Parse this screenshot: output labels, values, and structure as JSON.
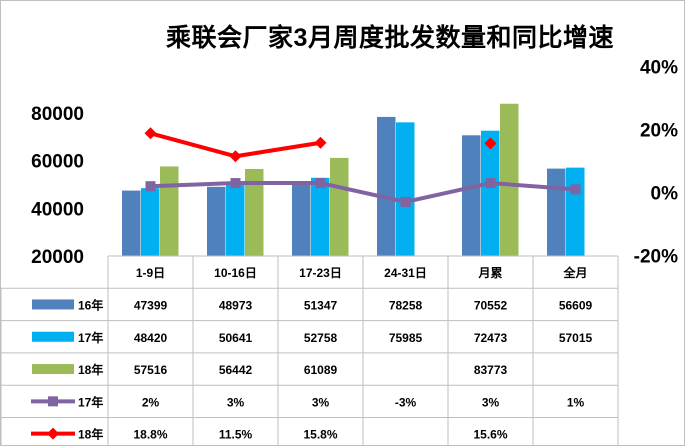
{
  "chart_data": {
    "type": "bar",
    "title": "乘联会厂家3月周度批发数量和同比增速",
    "categories": [
      "1-9日",
      "10-16日",
      "17-23日",
      "24-31日",
      "月累",
      "全月"
    ],
    "series": [
      {
        "name": "16年",
        "kind": "bar",
        "axis": "left",
        "color": "#4F81BD",
        "values": [
          47399,
          48973,
          51347,
          78258,
          70552,
          56609
        ]
      },
      {
        "name": "17年",
        "kind": "bar",
        "axis": "left",
        "color": "#00B0F0",
        "values": [
          48420,
          50641,
          52758,
          75985,
          72473,
          57015
        ]
      },
      {
        "name": "18年",
        "kind": "bar",
        "axis": "left",
        "color": "#9BBB59",
        "values": [
          57516,
          56442,
          61089,
          null,
          83773,
          null
        ]
      },
      {
        "name": "17年",
        "kind": "line",
        "axis": "right",
        "color": "#8064A2",
        "marker": "square",
        "values": [
          2,
          3,
          3,
          -3,
          3,
          1
        ]
      },
      {
        "name": "18年",
        "kind": "line",
        "axis": "right",
        "color": "#FF0000",
        "marker": "diamond",
        "values": [
          18.8,
          11.5,
          15.8,
          null,
          15.6,
          null
        ]
      }
    ],
    "table": [
      [
        "47399",
        "48973",
        "51347",
        "78258",
        "70552",
        "56609"
      ],
      [
        "48420",
        "50641",
        "52758",
        "75985",
        "72473",
        "57015"
      ],
      [
        "57516",
        "56442",
        "61089",
        "",
        "83773",
        ""
      ],
      [
        "2%",
        "3%",
        "3%",
        "-3%",
        "3%",
        "1%"
      ],
      [
        "18.8%",
        "11.5%",
        "15.8%",
        "",
        "15.6%",
        ""
      ]
    ],
    "y_left": {
      "ticks": [
        "20000",
        "40000",
        "60000",
        "80000"
      ],
      "min": 20000,
      "max": 90000
    },
    "y_right": {
      "ticks": [
        "-20%",
        "0%",
        "20%",
        "40%"
      ],
      "min": -20,
      "max": 40
    },
    "legend": "table-rows-left",
    "grid": false
  }
}
